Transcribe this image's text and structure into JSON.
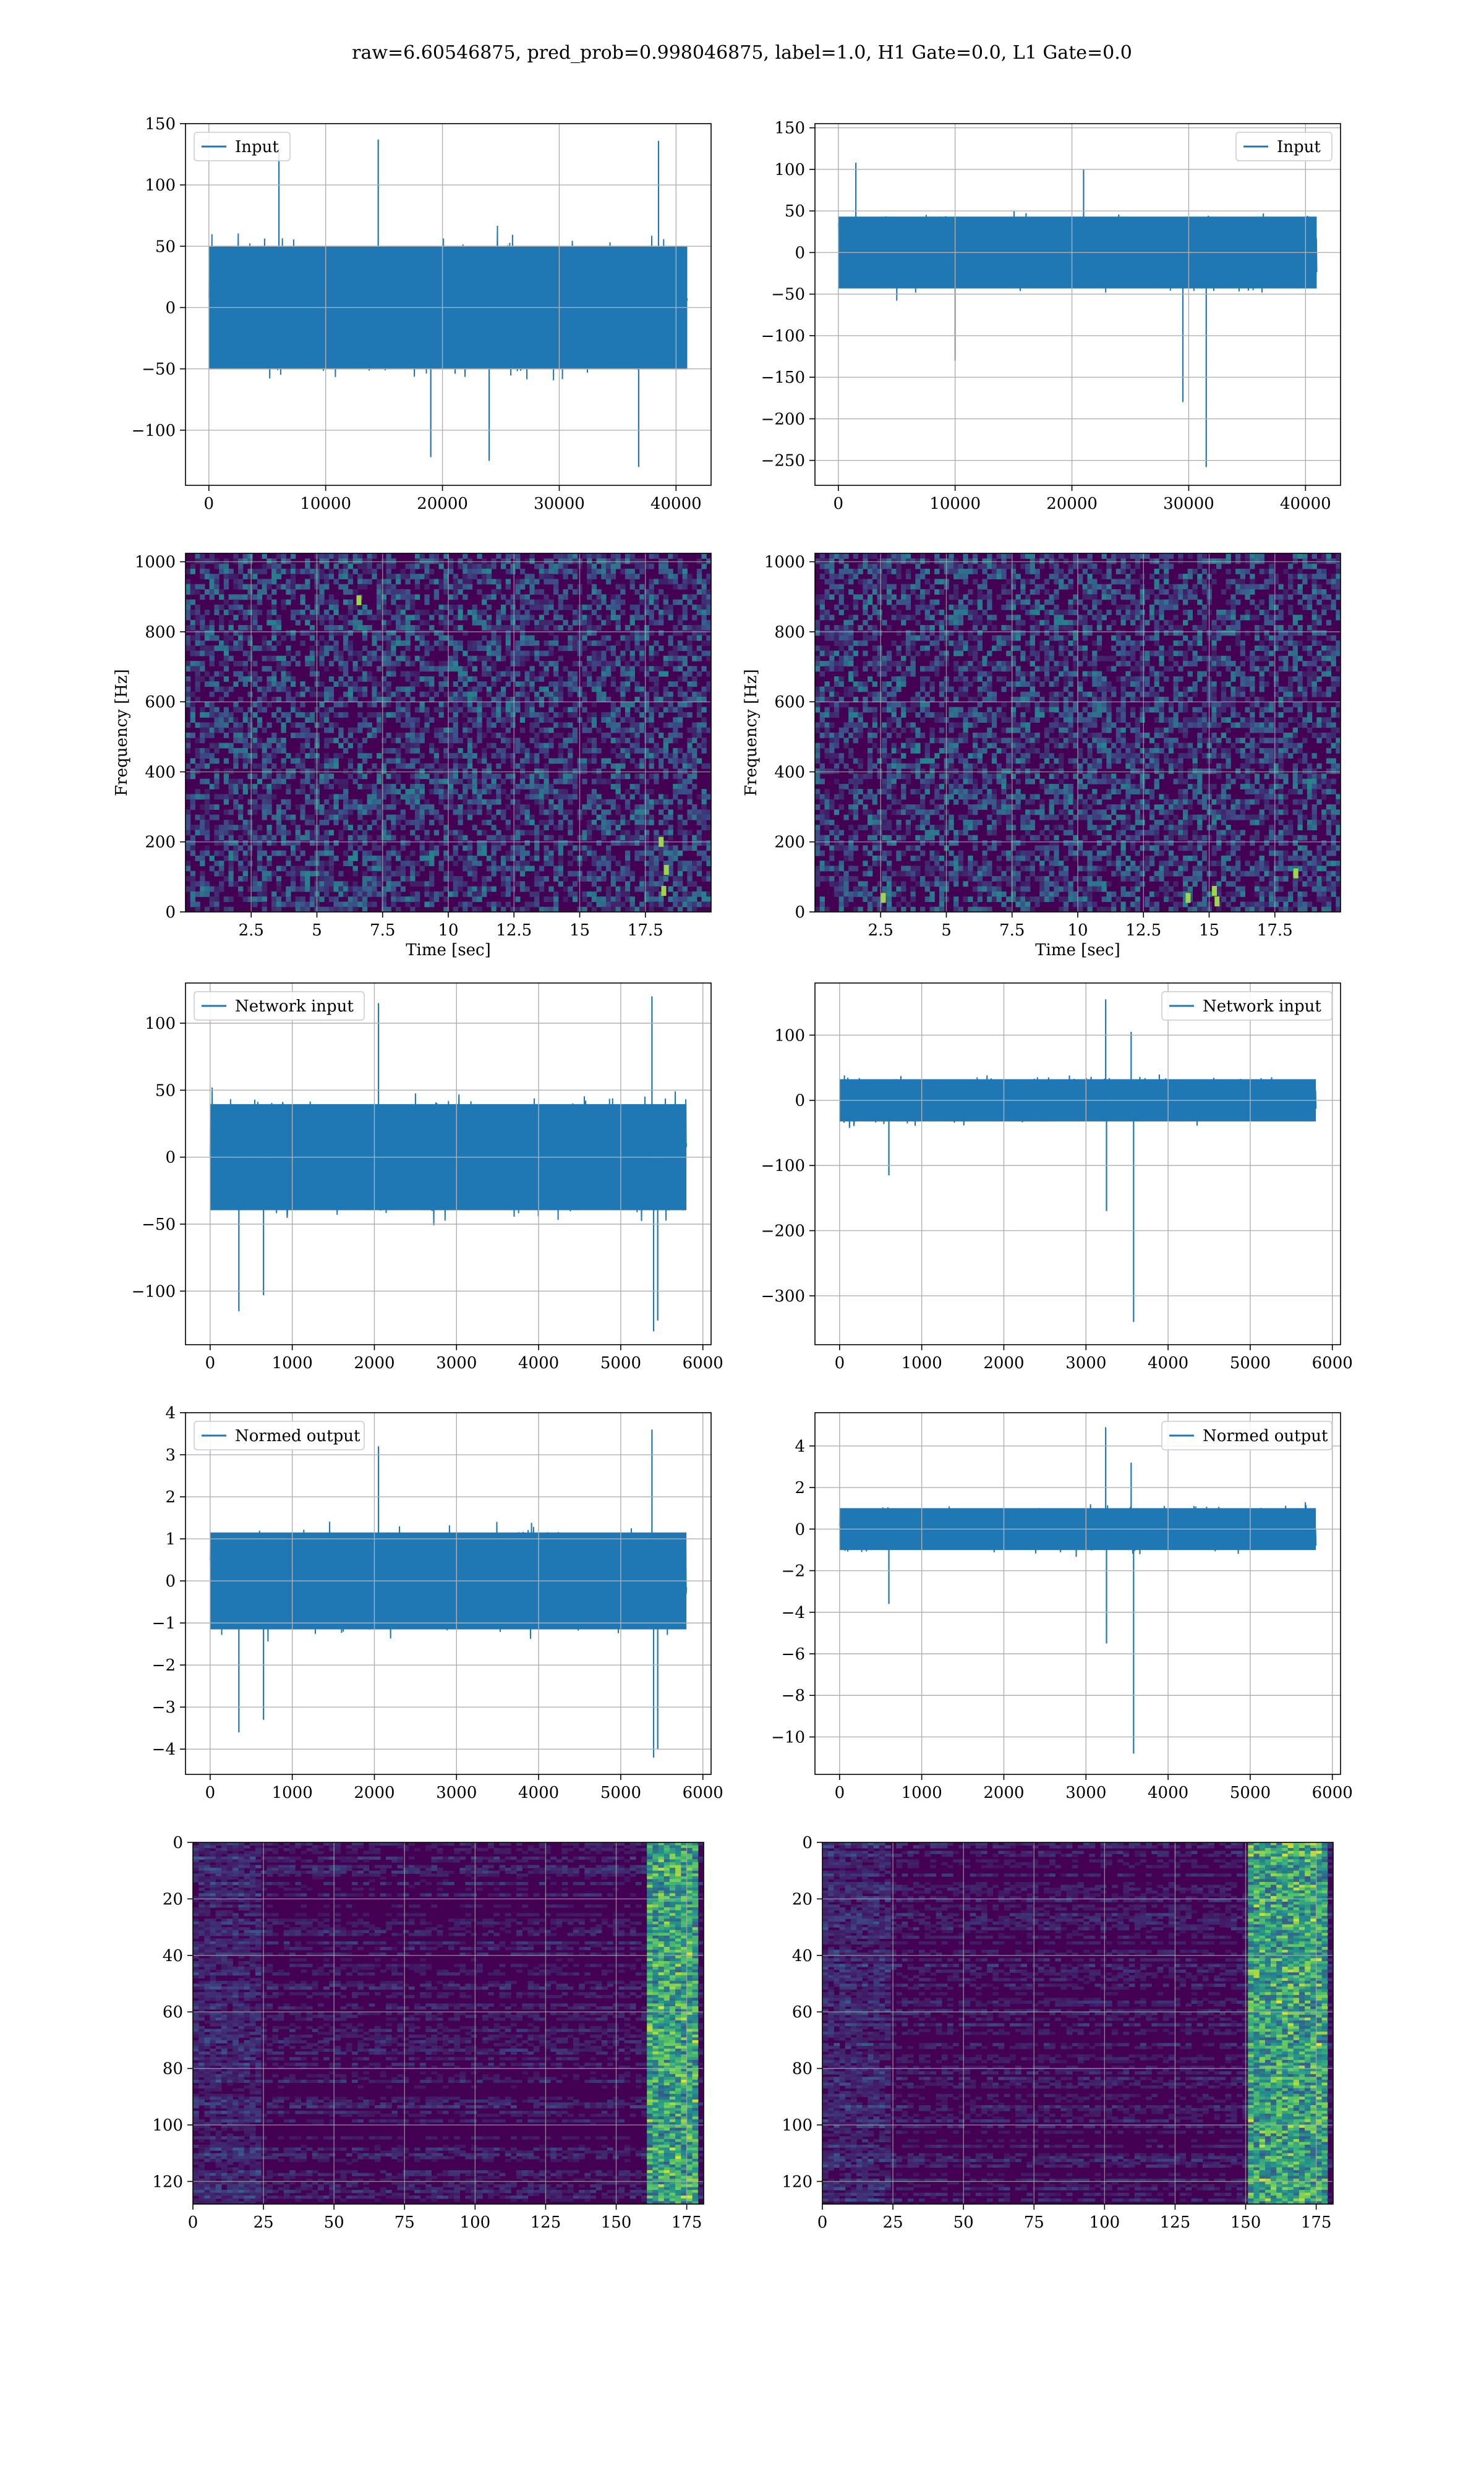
{
  "title": "raw=6.60546875, pred_prob=0.998046875, label=1.0, H1 Gate=0.0, L1 Gate=0.0",
  "colors": {
    "line": "#1f77b4",
    "grid": "#b0b0b0",
    "viridis_dark": "#440154",
    "viridis_mid": "#21918c",
    "viridis_bright": "#fde725"
  },
  "chart_data": [
    {
      "id": "h1-input",
      "type": "line",
      "series": [
        {
          "name": "Input",
          "x_extent": [
            0,
            40960
          ],
          "center": 0,
          "typical_amplitude": 70,
          "spikes": [
            {
              "x": 6000,
              "y": 130
            },
            {
              "x": 14500,
              "y": 137
            },
            {
              "x": 38500,
              "y": 136
            },
            {
              "x": 24000,
              "y": -125
            },
            {
              "x": 36800,
              "y": -130
            },
            {
              "x": 19000,
              "y": -122
            }
          ]
        }
      ],
      "xticks": [
        0,
        10000,
        20000,
        30000,
        40000
      ],
      "yticks": [
        -100,
        -50,
        0,
        50,
        100,
        150
      ],
      "xlim": [
        -2000,
        43000
      ],
      "ylim": [
        -145,
        150
      ],
      "legend": "upper left",
      "grid": true
    },
    {
      "id": "l1-input",
      "type": "line",
      "series": [
        {
          "name": "Input",
          "x_extent": [
            0,
            40960
          ],
          "center": 0,
          "typical_amplitude": 60,
          "spikes": [
            {
              "x": 21000,
              "y": 100
            },
            {
              "x": 29500,
              "y": -180
            },
            {
              "x": 31500,
              "y": -258
            },
            {
              "x": 10000,
              "y": -130
            },
            {
              "x": 1500,
              "y": 108
            }
          ]
        }
      ],
      "xticks": [
        0,
        10000,
        20000,
        30000,
        40000
      ],
      "yticks": [
        -250,
        -200,
        -150,
        -100,
        -50,
        0,
        50,
        100,
        150
      ],
      "xlim": [
        -2000,
        43000
      ],
      "ylim": [
        -280,
        155
      ],
      "legend": "upper right",
      "grid": true
    },
    {
      "id": "h1-spectrogram",
      "type": "heatmap",
      "xlabel": "Time [sec]",
      "ylabel": "Frequency [Hz]",
      "xticks": [
        2.5,
        5.0,
        7.5,
        10.0,
        12.5,
        15.0,
        17.5
      ],
      "yticks": [
        0,
        200,
        400,
        600,
        800,
        1000
      ],
      "xlim": [
        0,
        20
      ],
      "ylim": [
        0,
        1024
      ],
      "bright_spots": [
        {
          "x": 6.6,
          "y": 890
        },
        {
          "x": 18.1,
          "y": 200
        },
        {
          "x": 18.3,
          "y": 120
        },
        {
          "x": 18.2,
          "y": 60
        }
      ],
      "grid": true
    },
    {
      "id": "l1-spectrogram",
      "type": "heatmap",
      "xlabel": "Time [sec]",
      "ylabel": "Frequency [Hz]",
      "xticks": [
        2.5,
        5.0,
        7.5,
        10.0,
        12.5,
        15.0,
        17.5
      ],
      "yticks": [
        0,
        200,
        400,
        600,
        800,
        1000
      ],
      "xlim": [
        0,
        20
      ],
      "ylim": [
        0,
        1024
      ],
      "bright_spots": [
        {
          "x": 2.6,
          "y": 40
        },
        {
          "x": 14.2,
          "y": 40
        },
        {
          "x": 15.2,
          "y": 60
        },
        {
          "x": 15.3,
          "y": 30
        },
        {
          "x": 18.3,
          "y": 110
        }
      ],
      "grid": true
    },
    {
      "id": "h1-network-input",
      "type": "line",
      "series": [
        {
          "name": "Network input",
          "x_extent": [
            0,
            5800
          ],
          "center": 0,
          "typical_amplitude": 55,
          "spikes": [
            {
              "x": 2050,
              "y": 115
            },
            {
              "x": 5380,
              "y": 120
            },
            {
              "x": 5400,
              "y": -130
            },
            {
              "x": 350,
              "y": -115
            },
            {
              "x": 650,
              "y": -103
            },
            {
              "x": 5450,
              "y": -122
            }
          ]
        }
      ],
      "xticks": [
        0,
        1000,
        2000,
        3000,
        4000,
        5000,
        6000
      ],
      "yticks": [
        -100,
        -50,
        0,
        50,
        100
      ],
      "xlim": [
        -300,
        6100
      ],
      "ylim": [
        -140,
        130
      ],
      "legend": "upper left",
      "grid": true
    },
    {
      "id": "l1-network-input",
      "type": "line",
      "series": [
        {
          "name": "Network input",
          "x_extent": [
            0,
            5800
          ],
          "center": 0,
          "typical_amplitude": 45,
          "spikes": [
            {
              "x": 3240,
              "y": 155
            },
            {
              "x": 3250,
              "y": -170
            },
            {
              "x": 3580,
              "y": -340
            },
            {
              "x": 3550,
              "y": 105
            },
            {
              "x": 600,
              "y": -115
            }
          ]
        }
      ],
      "xticks": [
        0,
        1000,
        2000,
        3000,
        4000,
        5000,
        6000
      ],
      "yticks": [
        -300,
        -200,
        -100,
        0,
        100
      ],
      "xlim": [
        -300,
        6100
      ],
      "ylim": [
        -375,
        180
      ],
      "legend": "upper right",
      "grid": true
    },
    {
      "id": "h1-normed-output",
      "type": "line",
      "series": [
        {
          "name": "Normed output",
          "x_extent": [
            0,
            5800
          ],
          "center": 0,
          "typical_amplitude": 1.6,
          "spikes": [
            {
              "x": 2050,
              "y": 3.2
            },
            {
              "x": 5380,
              "y": 3.6
            },
            {
              "x": 5400,
              "y": -4.2
            },
            {
              "x": 350,
              "y": -3.6
            },
            {
              "x": 650,
              "y": -3.3
            },
            {
              "x": 5450,
              "y": -4.0
            }
          ]
        }
      ],
      "xticks": [
        0,
        1000,
        2000,
        3000,
        4000,
        5000,
        6000
      ],
      "yticks": [
        -4,
        -3,
        -2,
        -1,
        0,
        1,
        2,
        3,
        4
      ],
      "xlim": [
        -300,
        6100
      ],
      "ylim": [
        -4.6,
        4.0
      ],
      "legend": "upper left",
      "grid": true
    },
    {
      "id": "l1-normed-output",
      "type": "line",
      "series": [
        {
          "name": "Normed output",
          "x_extent": [
            0,
            5800
          ],
          "center": 0,
          "typical_amplitude": 1.4,
          "spikes": [
            {
              "x": 3240,
              "y": 4.9
            },
            {
              "x": 3250,
              "y": -5.5
            },
            {
              "x": 3580,
              "y": -10.8
            },
            {
              "x": 3550,
              "y": 3.2
            },
            {
              "x": 600,
              "y": -3.6
            }
          ]
        }
      ],
      "xticks": [
        0,
        1000,
        2000,
        3000,
        4000,
        5000,
        6000
      ],
      "yticks": [
        -10,
        -8,
        -6,
        -4,
        -2,
        0,
        2,
        4
      ],
      "xlim": [
        -300,
        6100
      ],
      "ylim": [
        -11.8,
        5.6
      ],
      "legend": "upper right",
      "grid": true
    },
    {
      "id": "h1-feature-map",
      "type": "heatmap",
      "xticks": [
        0,
        25,
        50,
        75,
        100,
        125,
        150,
        175
      ],
      "yticks": [
        0,
        20,
        40,
        60,
        80,
        100,
        120
      ],
      "xlim": [
        0,
        181
      ],
      "ylim": [
        128,
        0
      ],
      "bright_band_x": [
        160,
        178
      ],
      "grid": true
    },
    {
      "id": "l1-feature-map",
      "type": "heatmap",
      "xticks": [
        0,
        25,
        50,
        75,
        100,
        125,
        150,
        175
      ],
      "yticks": [
        0,
        20,
        40,
        60,
        80,
        100,
        120
      ],
      "xlim": [
        0,
        181
      ],
      "ylim": [
        128,
        0
      ],
      "bright_band_x": [
        150,
        178
      ],
      "grid": true
    }
  ]
}
